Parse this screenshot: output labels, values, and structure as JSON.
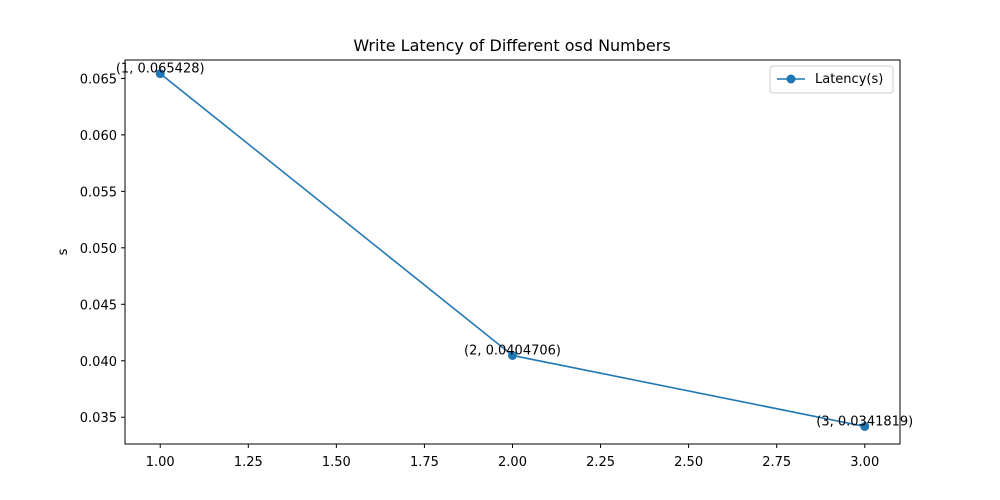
{
  "chart_data": {
    "type": "line",
    "title": "Write Latency of Different osd Numbers",
    "xlabel": "",
    "ylabel": "s",
    "x": [
      1,
      2,
      3
    ],
    "series": [
      {
        "name": "Latency(s)",
        "values": [
          0.065428,
          0.0404706,
          0.0341819
        ],
        "color": "#1f77b4",
        "marker": "circle"
      }
    ],
    "data_labels": [
      "(1, 0.065428)",
      "(2, 0.0404706)",
      "(3, 0.0341819)"
    ],
    "xlim": [
      0.9,
      3.1
    ],
    "ylim": [
      0.03263,
      0.06663
    ],
    "xticks": [
      1.0,
      1.25,
      1.5,
      1.75,
      2.0,
      2.25,
      2.5,
      2.75,
      3.0
    ],
    "xtick_labels": [
      "1.00",
      "1.25",
      "1.50",
      "1.75",
      "2.00",
      "2.25",
      "2.50",
      "2.75",
      "3.00"
    ],
    "yticks": [
      0.035,
      0.04,
      0.045,
      0.05,
      0.055,
      0.06,
      0.065
    ],
    "ytick_labels": [
      "0.035",
      "0.040",
      "0.045",
      "0.050",
      "0.055",
      "0.060",
      "0.065"
    ],
    "grid": false,
    "legend_position": "upper right"
  }
}
